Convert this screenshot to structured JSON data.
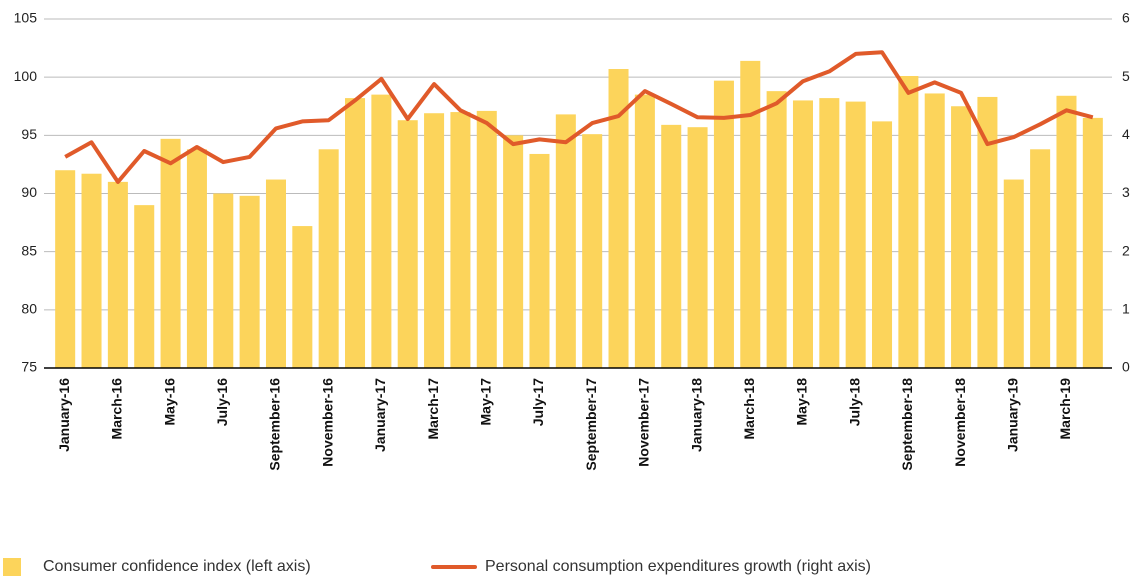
{
  "chart_data": {
    "type": "bar",
    "categories": [
      "January-16",
      null,
      "March-16",
      null,
      "May-16",
      null,
      "July-16",
      null,
      "September-16",
      null,
      "November-16",
      null,
      "January-17",
      null,
      "March-17",
      null,
      "May-17",
      null,
      "July-17",
      null,
      "September-17",
      null,
      "November-17",
      null,
      "January-18",
      null,
      "March-18",
      null,
      "May-18",
      null,
      "July-18",
      null,
      "September-18",
      null,
      "November-18",
      null,
      "January-19",
      null,
      "March-19",
      null
    ],
    "series": [
      {
        "name": "Consumer confidence index (left axis)",
        "type": "bar",
        "color": "#fcd45b",
        "axis": "y",
        "values": [
          92.0,
          91.7,
          91.0,
          89.0,
          94.7,
          93.8,
          90.0,
          89.8,
          91.2,
          87.2,
          93.8,
          98.2,
          98.5,
          96.3,
          96.9,
          97.0,
          97.1,
          95.0,
          93.4,
          96.8,
          95.1,
          100.7,
          98.5,
          95.9,
          95.7,
          99.7,
          101.4,
          98.8,
          98.0,
          98.2,
          97.9,
          96.2,
          100.1,
          98.6,
          97.5,
          98.3,
          91.2,
          93.8,
          98.4,
          96.5
        ]
      },
      {
        "name": "Personal consumption expenditures growth (right axis)",
        "type": "line",
        "color": "#e05a2a",
        "axis": "y2",
        "values": [
          3.63,
          3.88,
          3.2,
          3.73,
          3.52,
          3.8,
          3.54,
          3.63,
          4.12,
          4.24,
          4.26,
          4.6,
          4.97,
          4.28,
          4.88,
          4.43,
          4.21,
          3.85,
          3.93,
          3.88,
          4.21,
          4.33,
          4.76,
          4.54,
          4.31,
          4.3,
          4.35,
          4.55,
          4.93,
          5.1,
          5.4,
          5.43,
          4.73,
          4.91,
          4.73,
          3.85,
          3.97,
          4.19,
          4.43,
          4.31
        ]
      }
    ],
    "ylim": [
      75,
      105
    ],
    "yticks": [
      75,
      80,
      85,
      90,
      95,
      100,
      105
    ],
    "y2lim": [
      0,
      6
    ],
    "y2ticks": [
      0,
      1,
      2,
      3,
      4,
      5,
      6
    ],
    "grid": true,
    "legend": "bottom"
  }
}
